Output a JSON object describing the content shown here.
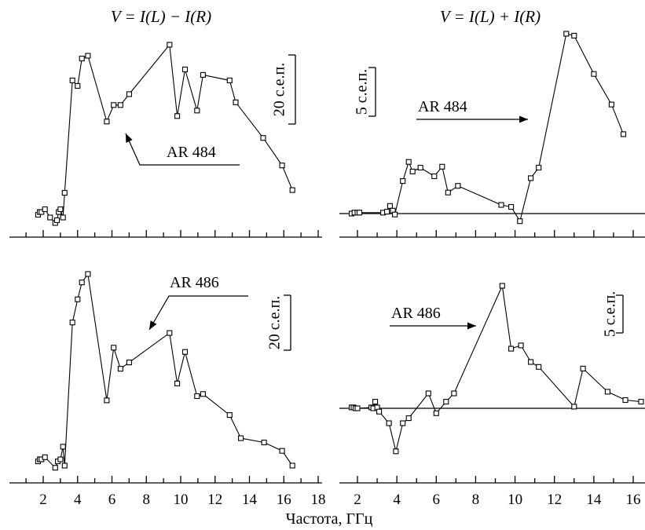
{
  "chart_data": [
    {
      "type": "line",
      "title": "V = I(L) − I(R)",
      "annotation": "AR 484",
      "scale_bar": "20 с.е.п.",
      "xlim": [
        0,
        18
      ],
      "xticks": [
        2,
        4,
        6,
        8,
        10,
        12,
        14,
        16,
        18
      ],
      "baseline": false,
      "x": [
        1.7,
        1.8,
        1.9,
        2.1,
        2.4,
        2.7,
        2.8,
        2.9,
        3.0,
        3.15,
        3.25,
        3.7,
        4.0,
        4.25,
        4.6,
        5.7,
        6.1,
        6.5,
        7.0,
        9.35,
        9.8,
        10.25,
        10.95,
        11.3,
        12.85,
        13.2,
        14.8,
        15.9,
        16.5
      ],
      "y": [
        3,
        4,
        4,
        5,
        2,
        0,
        1,
        4,
        5,
        2,
        11,
        52,
        50,
        60,
        61,
        37,
        43,
        43,
        47,
        65,
        39,
        56,
        41,
        54,
        52,
        44,
        31,
        21,
        12
      ]
    },
    {
      "type": "line",
      "title": "V = I(L) + I(R)",
      "annotation": "AR 484",
      "scale_bar": "5 с.е.п.",
      "xlim": [
        0,
        17
      ],
      "xticks": [
        2,
        4,
        6,
        8,
        10,
        12,
        14,
        16
      ],
      "baseline": true,
      "x": [
        1.7,
        1.85,
        2.0,
        2.1,
        3.3,
        3.5,
        3.65,
        3.8,
        3.9,
        4.3,
        4.6,
        4.8,
        5.2,
        5.9,
        6.3,
        6.6,
        7.1,
        9.3,
        9.8,
        10.25,
        10.8,
        11.2,
        12.6,
        13.0,
        14.0,
        14.9,
        15.5
      ],
      "y": [
        0,
        0.1,
        0.1,
        0.1,
        0.1,
        0.2,
        0.8,
        0.3,
        -0.1,
        3.4,
        5.4,
        4.4,
        4.8,
        3.9,
        4.9,
        2.2,
        2.9,
        0.9,
        0.7,
        -0.8,
        3.7,
        4.8,
        18.8,
        18.6,
        14.6,
        11.4,
        8.3
      ]
    },
    {
      "type": "line",
      "annotation": "AR 486",
      "scale_bar": "20 с.е.п.",
      "xlim": [
        0,
        18
      ],
      "xticks": [
        2,
        4,
        6,
        8,
        10,
        12,
        14,
        16,
        18
      ],
      "baseline": false,
      "x": [
        1.7,
        1.8,
        1.9,
        2.1,
        2.7,
        2.85,
        3.0,
        3.15,
        3.25,
        3.7,
        4.0,
        4.25,
        4.6,
        5.7,
        6.1,
        6.5,
        7.0,
        9.35,
        9.8,
        10.25,
        10.95,
        11.3,
        12.85,
        13.5,
        14.85,
        15.9,
        16.5
      ],
      "y": [
        1,
        2,
        2,
        3,
        -2,
        1,
        2,
        8,
        -1,
        67,
        78,
        86,
        90,
        30,
        55,
        45,
        48,
        62,
        38,
        53,
        32,
        33,
        23,
        12,
        10,
        6,
        -1
      ]
    },
    {
      "type": "line",
      "annotation": "AR 486",
      "scale_bar": "5 с.е.п.",
      "xlim": [
        1,
        17
      ],
      "xticks": [
        2,
        4,
        6,
        8,
        10,
        12,
        14,
        16
      ],
      "baseline": true,
      "x": [
        1.7,
        1.8,
        1.9,
        2.0,
        2.7,
        2.8,
        2.9,
        3.0,
        3.1,
        3.6,
        3.95,
        4.3,
        4.6,
        5.6,
        6.0,
        6.5,
        6.9,
        9.35,
        9.8,
        10.3,
        10.8,
        11.2,
        13.0,
        13.45,
        14.7,
        15.6,
        16.4
      ],
      "y": [
        0.05,
        0.05,
        0.0,
        0.0,
        0.05,
        0.0,
        0.4,
        0.05,
        -0.2,
        -0.9,
        -2.6,
        -0.9,
        -0.6,
        0.9,
        -0.3,
        0.4,
        0.9,
        7.4,
        3.6,
        3.8,
        2.8,
        2.5,
        0.1,
        2.4,
        1.0,
        0.5,
        0.4
      ]
    }
  ],
  "xlabel": "Частота, ГГц"
}
